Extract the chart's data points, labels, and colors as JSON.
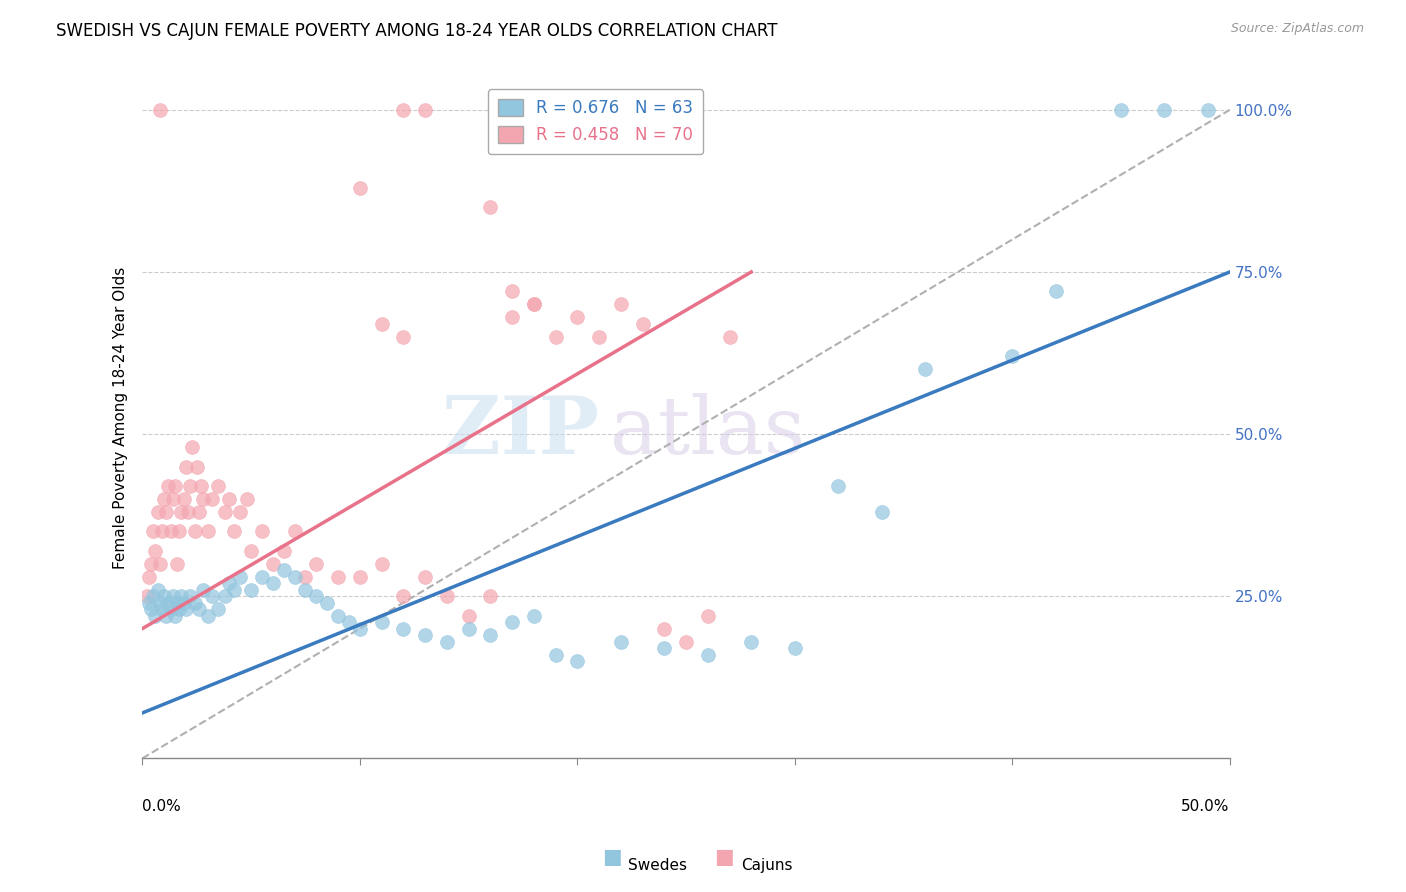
{
  "title": "SWEDISH VS CAJUN FEMALE POVERTY AMONG 18-24 YEAR OLDS CORRELATION CHART",
  "source": "Source: ZipAtlas.com",
  "ylabel": "Female Poverty Among 18-24 Year Olds",
  "legend_swedes": "R = 0.676   N = 63",
  "legend_cajuns": "R = 0.458   N = 70",
  "swedes_color": "#92c5de",
  "cajuns_color": "#f4a6b0",
  "swedes_line_color": "#3a7abf",
  "cajuns_line_color": "#e8728a",
  "grid_color": "#cccccc",
  "xlim": [
    0.0,
    0.5
  ],
  "ylim": [
    0.0,
    1.05
  ],
  "figsize": [
    14.06,
    8.92
  ],
  "dpi": 100,
  "swedes_x": [
    0.003,
    0.004,
    0.005,
    0.006,
    0.007,
    0.008,
    0.009,
    0.01,
    0.011,
    0.012,
    0.013,
    0.014,
    0.015,
    0.016,
    0.017,
    0.018,
    0.019,
    0.02,
    0.022,
    0.024,
    0.026,
    0.028,
    0.03,
    0.032,
    0.035,
    0.038,
    0.04,
    0.042,
    0.045,
    0.05,
    0.055,
    0.06,
    0.065,
    0.07,
    0.075,
    0.08,
    0.085,
    0.09,
    0.095,
    0.1,
    0.11,
    0.12,
    0.13,
    0.14,
    0.15,
    0.16,
    0.17,
    0.18,
    0.19,
    0.2,
    0.22,
    0.24,
    0.26,
    0.28,
    0.3,
    0.32,
    0.34,
    0.36,
    0.4,
    0.42,
    0.45,
    0.47,
    0.49
  ],
  "swedes_y": [
    0.24,
    0.23,
    0.25,
    0.22,
    0.26,
    0.24,
    0.23,
    0.25,
    0.22,
    0.24,
    0.23,
    0.25,
    0.22,
    0.24,
    0.23,
    0.25,
    0.24,
    0.23,
    0.25,
    0.24,
    0.23,
    0.26,
    0.22,
    0.25,
    0.23,
    0.25,
    0.27,
    0.26,
    0.28,
    0.26,
    0.28,
    0.27,
    0.29,
    0.28,
    0.26,
    0.25,
    0.24,
    0.22,
    0.21,
    0.2,
    0.21,
    0.2,
    0.19,
    0.18,
    0.2,
    0.19,
    0.21,
    0.22,
    0.16,
    0.15,
    0.18,
    0.17,
    0.16,
    0.18,
    0.17,
    0.42,
    0.38,
    0.6,
    0.62,
    0.72,
    1.0,
    1.0,
    1.0
  ],
  "cajuns_x": [
    0.002,
    0.003,
    0.004,
    0.005,
    0.006,
    0.007,
    0.008,
    0.009,
    0.01,
    0.011,
    0.012,
    0.013,
    0.014,
    0.015,
    0.016,
    0.017,
    0.018,
    0.019,
    0.02,
    0.021,
    0.022,
    0.023,
    0.024,
    0.025,
    0.026,
    0.027,
    0.028,
    0.03,
    0.032,
    0.035,
    0.038,
    0.04,
    0.042,
    0.045,
    0.048,
    0.05,
    0.055,
    0.06,
    0.065,
    0.07,
    0.075,
    0.08,
    0.09,
    0.1,
    0.11,
    0.12,
    0.13,
    0.14,
    0.15,
    0.16,
    0.17,
    0.18,
    0.19,
    0.2,
    0.21,
    0.22,
    0.23,
    0.24,
    0.25,
    0.26,
    0.27,
    0.008,
    0.12,
    0.13,
    0.1,
    0.16,
    0.17,
    0.18,
    0.11,
    0.12
  ],
  "cajuns_y": [
    0.25,
    0.28,
    0.3,
    0.35,
    0.32,
    0.38,
    0.3,
    0.35,
    0.4,
    0.38,
    0.42,
    0.35,
    0.4,
    0.42,
    0.3,
    0.35,
    0.38,
    0.4,
    0.45,
    0.38,
    0.42,
    0.48,
    0.35,
    0.45,
    0.38,
    0.42,
    0.4,
    0.35,
    0.4,
    0.42,
    0.38,
    0.4,
    0.35,
    0.38,
    0.4,
    0.32,
    0.35,
    0.3,
    0.32,
    0.35,
    0.28,
    0.3,
    0.28,
    0.28,
    0.3,
    0.25,
    0.28,
    0.25,
    0.22,
    0.25,
    0.68,
    0.7,
    0.65,
    0.68,
    0.65,
    0.7,
    0.67,
    0.2,
    0.18,
    0.22,
    0.65,
    1.0,
    1.0,
    1.0,
    0.88,
    0.85,
    0.72,
    0.7,
    0.67,
    0.65
  ],
  "swedes_line": {
    "x0": 0.0,
    "x1": 0.5,
    "y0": 0.07,
    "y1": 0.75
  },
  "cajuns_line": {
    "x0": 0.0,
    "x1": 0.28,
    "y0": 0.2,
    "y1": 0.75
  },
  "ref_line": {
    "x0": 0.0,
    "x1": 0.5,
    "y0": 0.0,
    "y1": 1.0
  }
}
